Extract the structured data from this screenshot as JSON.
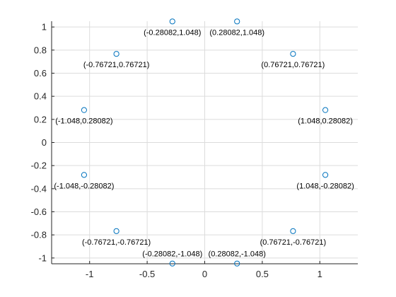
{
  "chart_data": {
    "type": "scatter",
    "title": "",
    "xlabel": "",
    "ylabel": "",
    "xlim": [
      -1.33,
      1.33
    ],
    "ylim": [
      -1.05,
      1.05
    ],
    "grid": true,
    "marker": "circle-open",
    "colors": {
      "marker": "#0072BD",
      "grid": "#dcdcdc",
      "axis": "#262626"
    },
    "x_ticks": [
      {
        "value": -1,
        "label": "-1"
      },
      {
        "value": -0.5,
        "label": "-0.5"
      },
      {
        "value": 0,
        "label": "0"
      },
      {
        "value": 0.5,
        "label": "0.5"
      },
      {
        "value": 1,
        "label": "1"
      }
    ],
    "y_ticks": [
      {
        "value": 1,
        "label": "1"
      },
      {
        "value": 0.8,
        "label": "0.8"
      },
      {
        "value": 0.6,
        "label": "0.6"
      },
      {
        "value": 0.4,
        "label": "0.4"
      },
      {
        "value": 0.2,
        "label": "0.2"
      },
      {
        "value": 0,
        "label": "0"
      },
      {
        "value": -0.2,
        "label": "-0.2"
      },
      {
        "value": -0.4,
        "label": "-0.4"
      },
      {
        "value": -0.6,
        "label": "-0.6"
      },
      {
        "value": -0.8,
        "label": "-0.8"
      },
      {
        "value": -1,
        "label": "-1"
      }
    ],
    "points": [
      {
        "x": -0.28082,
        "y": 1.048,
        "label": "(-0.28082,1.048)"
      },
      {
        "x": 0.28082,
        "y": 1.048,
        "label": "(0.28082,1.048)"
      },
      {
        "x": -0.76721,
        "y": 0.76721,
        "label": "(-0.76721,0.76721)"
      },
      {
        "x": 0.76721,
        "y": 0.76721,
        "label": "(0.76721,0.76721)"
      },
      {
        "x": -1.048,
        "y": 0.28082,
        "label": "(-1.048,0.28082)"
      },
      {
        "x": 1.048,
        "y": 0.28082,
        "label": "(1.048,0.28082)"
      },
      {
        "x": -1.048,
        "y": -0.28082,
        "label": "(-1.048,-0.28082)"
      },
      {
        "x": 1.048,
        "y": -0.28082,
        "label": "(1.048,-0.28082)"
      },
      {
        "x": -0.76721,
        "y": -0.76721,
        "label": "(-0.76721,-0.76721)"
      },
      {
        "x": 0.76721,
        "y": -0.76721,
        "label": "(0.76721,-0.76721)"
      },
      {
        "x": -0.28082,
        "y": -1.048,
        "label": "(-0.28082,-1.048)"
      },
      {
        "x": 0.28082,
        "y": -1.048,
        "label": "(0.28082,-1.048)"
      }
    ]
  }
}
